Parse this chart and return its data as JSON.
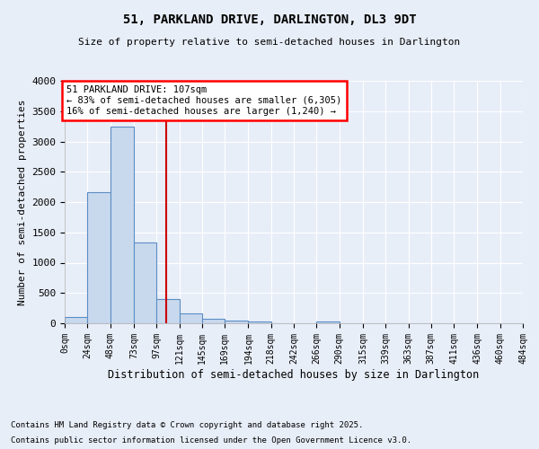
{
  "title1": "51, PARKLAND DRIVE, DARLINGTON, DL3 9DT",
  "title2": "Size of property relative to semi-detached houses in Darlington",
  "xlabel": "Distribution of semi-detached houses by size in Darlington",
  "ylabel": "Number of semi-detached properties",
  "bin_edges": [
    0,
    24,
    48,
    73,
    97,
    121,
    145,
    169,
    194,
    218,
    242,
    266,
    290,
    315,
    339,
    363,
    387,
    411,
    436,
    460,
    484
  ],
  "bar_heights": [
    110,
    2160,
    3240,
    1340,
    405,
    160,
    80,
    45,
    35,
    0,
    0,
    35,
    0,
    0,
    0,
    0,
    0,
    0,
    0,
    0
  ],
  "bar_color": "#c8d9ee",
  "bar_edge_color": "#5b8ec4",
  "property_size": 107,
  "annotation_text": "51 PARKLAND DRIVE: 107sqm\n← 83% of semi-detached houses are smaller (6,305)\n16% of semi-detached houses are larger (1,240) →",
  "vline_color": "#cc0000",
  "background_color": "#e8eef8",
  "grid_color": "#ffffff",
  "footer1": "Contains HM Land Registry data © Crown copyright and database right 2025.",
  "footer2": "Contains public sector information licensed under the Open Government Licence v3.0.",
  "xlim": [
    0,
    484
  ],
  "ylim": [
    0,
    4000
  ],
  "yticks": [
    0,
    500,
    1000,
    1500,
    2000,
    2500,
    3000,
    3500,
    4000
  ],
  "xtick_labels": [
    "0sqm",
    "24sqm",
    "48sqm",
    "73sqm",
    "97sqm",
    "121sqm",
    "145sqm",
    "169sqm",
    "194sqm",
    "218sqm",
    "242sqm",
    "266sqm",
    "290sqm",
    "315sqm",
    "339sqm",
    "363sqm",
    "387sqm",
    "411sqm",
    "436sqm",
    "460sqm",
    "484sqm"
  ]
}
